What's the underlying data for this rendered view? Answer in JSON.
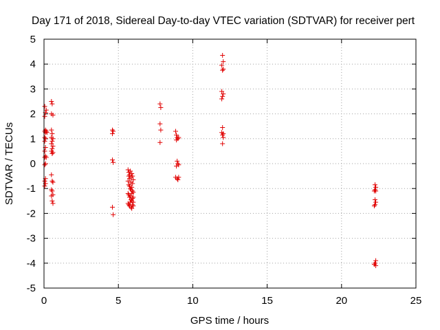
{
  "chart_data": {
    "type": "scatter",
    "title": "Day 171 of 2018, Sidereal Day-to-day VTEC variation (SDTVAR) for receiver pert",
    "xlabel": "GPS time / hours",
    "ylabel": "SDTVAR / TECUs",
    "xlim": [
      0,
      25
    ],
    "ylim": [
      -5,
      5
    ],
    "xticks": [
      0,
      5,
      10,
      15,
      20,
      25
    ],
    "yticks": [
      -5,
      -4,
      -3,
      -2,
      -1,
      0,
      1,
      2,
      3,
      4,
      5
    ],
    "grid": true,
    "marker": "+",
    "color": "#e00000",
    "series": [
      {
        "name": "SDTVAR",
        "points": [
          [
            0.05,
            2.3
          ],
          [
            0.1,
            2.05
          ],
          [
            0.15,
            2.15
          ],
          [
            0.05,
            1.9
          ],
          [
            0.1,
            1.35
          ],
          [
            0.05,
            1.3
          ],
          [
            0.1,
            1.25
          ],
          [
            0.15,
            1.3
          ],
          [
            0.2,
            1.25
          ],
          [
            0.05,
            1.05
          ],
          [
            0.1,
            1.0
          ],
          [
            0.05,
            0.9
          ],
          [
            0.1,
            0.65
          ],
          [
            0.05,
            0.5
          ],
          [
            0.1,
            0.3
          ],
          [
            0.15,
            0.25
          ],
          [
            0.05,
            0.25
          ],
          [
            0.1,
            0.0
          ],
          [
            0.05,
            -0.05
          ],
          [
            0.1,
            -0.6
          ],
          [
            0.05,
            -0.7
          ],
          [
            0.1,
            -0.8
          ],
          [
            0.05,
            -0.9
          ],
          [
            0.5,
            2.5
          ],
          [
            0.55,
            2.4
          ],
          [
            0.5,
            2.0
          ],
          [
            0.6,
            1.95
          ],
          [
            0.5,
            1.35
          ],
          [
            0.55,
            1.2
          ],
          [
            0.5,
            1.05
          ],
          [
            0.6,
            1.0
          ],
          [
            0.55,
            0.9
          ],
          [
            0.5,
            0.8
          ],
          [
            0.6,
            0.7
          ],
          [
            0.55,
            0.6
          ],
          [
            0.5,
            0.5
          ],
          [
            0.6,
            0.45
          ],
          [
            0.55,
            0.4
          ],
          [
            0.5,
            -0.45
          ],
          [
            0.55,
            -0.7
          ],
          [
            0.6,
            -0.75
          ],
          [
            0.5,
            -1.05
          ],
          [
            0.55,
            -1.1
          ],
          [
            0.6,
            -1.25
          ],
          [
            0.5,
            -1.3
          ],
          [
            0.55,
            -1.5
          ],
          [
            0.6,
            -1.6
          ],
          [
            4.6,
            1.35
          ],
          [
            4.65,
            1.3
          ],
          [
            4.6,
            1.2
          ],
          [
            4.6,
            0.15
          ],
          [
            4.65,
            0.05
          ],
          [
            4.6,
            -1.75
          ],
          [
            4.65,
            -2.05
          ],
          [
            5.65,
            -0.25
          ],
          [
            5.7,
            -0.35
          ],
          [
            5.75,
            -0.45
          ],
          [
            5.8,
            -0.3
          ],
          [
            5.85,
            -0.55
          ],
          [
            5.9,
            -0.4
          ],
          [
            5.95,
            -0.5
          ],
          [
            6.0,
            -0.65
          ],
          [
            5.65,
            -0.7
          ],
          [
            5.7,
            -0.85
          ],
          [
            5.75,
            -0.9
          ],
          [
            5.8,
            -1.0
          ],
          [
            5.85,
            -1.05
          ],
          [
            5.9,
            -0.95
          ],
          [
            5.95,
            -1.1
          ],
          [
            6.0,
            -1.15
          ],
          [
            5.65,
            -1.2
          ],
          [
            5.7,
            -1.25
          ],
          [
            5.75,
            -1.35
          ],
          [
            5.8,
            -1.3
          ],
          [
            5.85,
            -1.45
          ],
          [
            5.9,
            -1.5
          ],
          [
            5.95,
            -1.4
          ],
          [
            6.0,
            -1.55
          ],
          [
            5.65,
            -1.6
          ],
          [
            5.7,
            -1.65
          ],
          [
            5.75,
            -1.7
          ],
          [
            5.8,
            -1.55
          ],
          [
            5.85,
            -1.75
          ],
          [
            5.9,
            -1.8
          ],
          [
            5.95,
            -1.65
          ],
          [
            6.0,
            -1.7
          ],
          [
            5.75,
            -0.6
          ],
          [
            5.85,
            -0.75
          ],
          [
            5.95,
            -0.8
          ],
          [
            5.7,
            -0.5
          ],
          [
            5.9,
            -1.2
          ],
          [
            6.0,
            -1.35
          ],
          [
            7.8,
            2.4
          ],
          [
            7.85,
            2.25
          ],
          [
            7.8,
            1.6
          ],
          [
            7.85,
            1.35
          ],
          [
            7.8,
            0.85
          ],
          [
            8.85,
            1.3
          ],
          [
            8.9,
            1.15
          ],
          [
            8.95,
            1.05
          ],
          [
            9.0,
            1.0
          ],
          [
            9.05,
            1.05
          ],
          [
            8.9,
            0.95
          ],
          [
            8.95,
            0.1
          ],
          [
            9.0,
            0.0
          ],
          [
            8.9,
            -0.1
          ],
          [
            9.05,
            -0.05
          ],
          [
            8.85,
            -0.55
          ],
          [
            8.95,
            -0.6
          ],
          [
            9.0,
            -0.65
          ],
          [
            9.05,
            -0.55
          ],
          [
            12.0,
            4.35
          ],
          [
            12.05,
            4.1
          ],
          [
            11.95,
            3.95
          ],
          [
            12.05,
            3.8
          ],
          [
            12.0,
            3.75
          ],
          [
            11.95,
            2.9
          ],
          [
            12.05,
            2.8
          ],
          [
            12.0,
            2.7
          ],
          [
            11.95,
            2.6
          ],
          [
            12.0,
            1.45
          ],
          [
            11.95,
            1.25
          ],
          [
            12.05,
            1.2
          ],
          [
            12.0,
            1.15
          ],
          [
            12.05,
            1.05
          ],
          [
            12.0,
            0.8
          ],
          [
            22.25,
            -0.85
          ],
          [
            22.3,
            -0.95
          ],
          [
            22.25,
            -1.05
          ],
          [
            22.2,
            -1.1
          ],
          [
            22.3,
            -1.1
          ],
          [
            22.25,
            -1.45
          ],
          [
            22.3,
            -1.55
          ],
          [
            22.25,
            -1.65
          ],
          [
            22.2,
            -1.7
          ],
          [
            22.3,
            -3.9
          ],
          [
            22.25,
            -4.0
          ],
          [
            22.2,
            -4.05
          ],
          [
            22.3,
            -4.1
          ]
        ]
      }
    ]
  }
}
